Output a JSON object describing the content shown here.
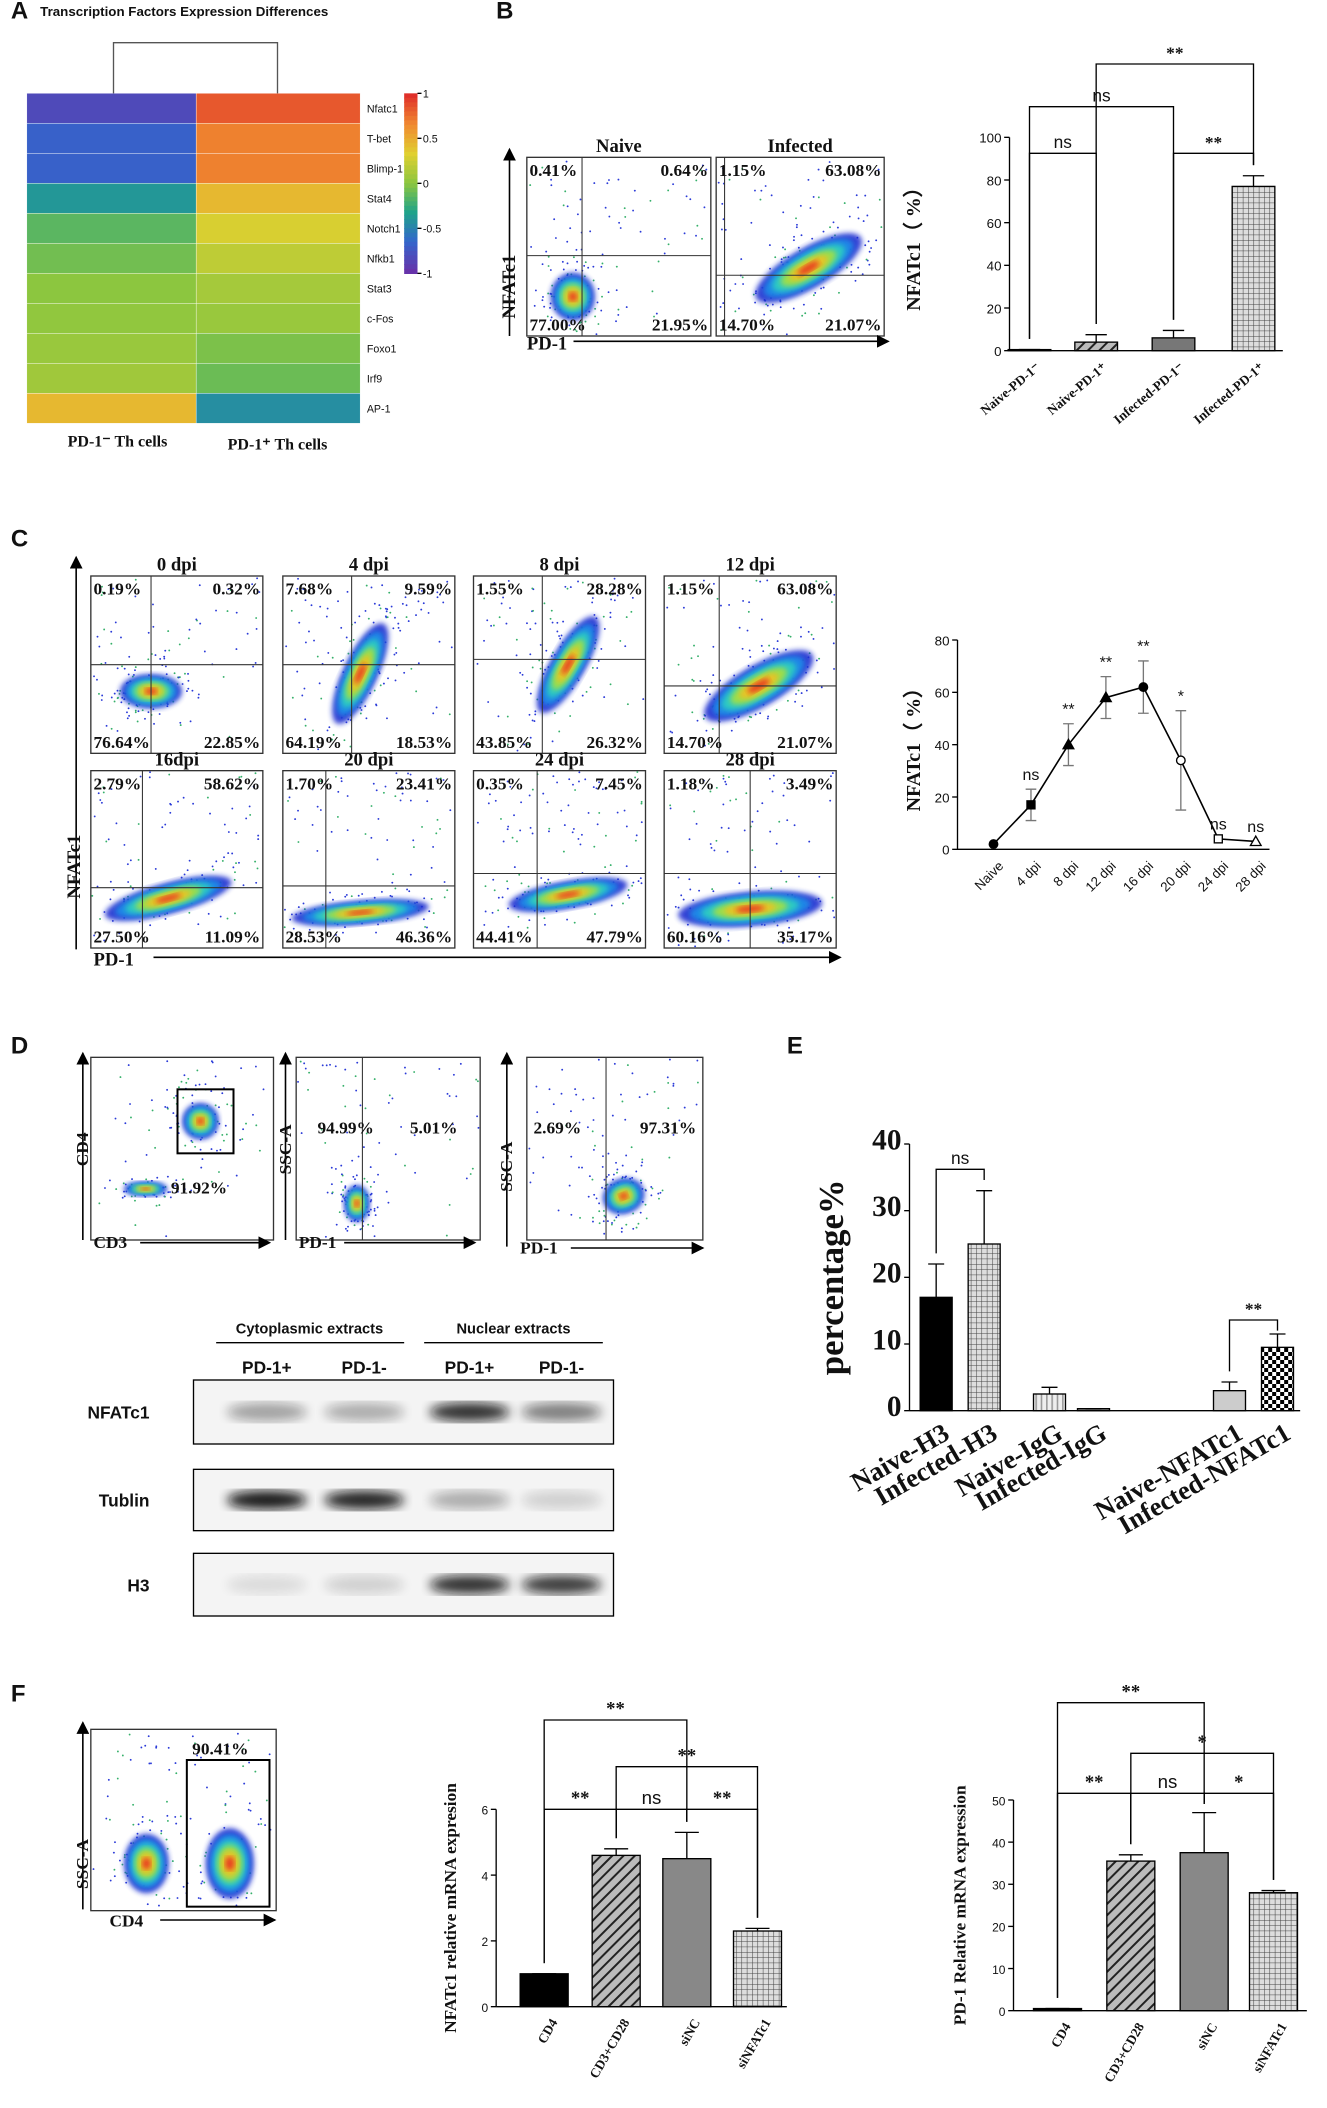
{
  "panel_labels": [
    "A",
    "B",
    "C",
    "D",
    "E",
    "F"
  ],
  "chart_data": [
    {
      "type": "heatmap",
      "title": "Transcription Factors Expression Differences",
      "rows": [
        "Nfatc1",
        "T-bet",
        "Blimp-1",
        "Stat4",
        "Notch1",
        "Nfkb1",
        "Stat3",
        "c-Fos",
        "Foxo1",
        "Irf9",
        "AP-1"
      ],
      "columns": [
        "PD-1⁻ Th cells",
        "PD-1⁺ Th cells"
      ],
      "values": [
        [
          -0.85,
          0.85
        ],
        [
          -0.7,
          0.7
        ],
        [
          -0.7,
          0.7
        ],
        [
          -0.4,
          0.45
        ],
        [
          -0.15,
          0.3
        ],
        [
          -0.08,
          0.2
        ],
        [
          0,
          0.1
        ],
        [
          0.02,
          0.05
        ],
        [
          0.05,
          -0.05
        ],
        [
          0.08,
          -0.1
        ],
        [
          0.45,
          -0.45
        ]
      ],
      "zlim": [
        -1,
        1
      ],
      "zticks": [
        1,
        0.5,
        0,
        -0.5,
        -1
      ],
      "colorscale": [
        "#6633aa",
        "#3366cc",
        "#1fa38a",
        "#8cc63f",
        "#e0d030",
        "#f08a30",
        "#e0302a"
      ]
    },
    {
      "type": "bar",
      "ylabel": "NFATc1（ %）",
      "categories": [
        "Naive-PD-1⁻",
        "Naive-PD-1⁺",
        "Infected-PD-1⁻",
        "Infected-PD-1⁺"
      ],
      "values": [
        0.5,
        4,
        6,
        77
      ],
      "errors": [
        0,
        3.5,
        3.5,
        5
      ],
      "colors": [
        "#000000",
        "#777777",
        "#777777",
        "#bbbbbb"
      ],
      "patterns": [
        "solid",
        "hatch",
        "solid",
        "grid"
      ],
      "ylim": [
        0,
        100
      ],
      "yticks": [
        0,
        20,
        40,
        60,
        80,
        100
      ],
      "annotations": [
        {
          "text": "ns",
          "from": 0,
          "to": 1
        },
        {
          "text": "ns",
          "from": 0,
          "to": 2
        },
        {
          "text": "**",
          "from": 2,
          "to": 3
        },
        {
          "text": "**",
          "from": 1,
          "to": 3
        }
      ]
    },
    {
      "type": "line",
      "ylabel": "NFATc1（ %）",
      "color": "#000000",
      "categories": [
        "Naive",
        "4 dpi",
        "8 dpi",
        "12 dpi",
        "16 dpi",
        "20 dpi",
        "24 dpi",
        "28 dpi"
      ],
      "values": [
        2,
        17,
        40,
        58,
        62,
        34,
        4,
        3
      ],
      "errors": [
        0,
        6,
        8,
        8,
        10,
        19,
        0,
        0
      ],
      "point_labels": [
        null,
        "ns",
        "**",
        "**",
        "**",
        "*",
        "ns",
        "ns"
      ],
      "ylim": [
        0,
        80
      ],
      "yticks": [
        0,
        20,
        40,
        60,
        80
      ]
    },
    {
      "type": "bar",
      "ylabel": "percentage%",
      "categories": [
        "Naive-H3",
        "Infected-H3",
        "Naive-IgG",
        "Infected-IgG",
        "Naive-NFATc1",
        "Infected-NFATc1"
      ],
      "values": [
        17,
        25,
        2.5,
        0.3,
        3,
        9.5
      ],
      "errors": [
        5,
        8,
        1,
        0,
        1.3,
        2
      ],
      "colors": [
        "#000000",
        "#888888",
        "#cccccc",
        "#888888",
        "#cccccc",
        "#000000"
      ],
      "patterns": [
        "solid",
        "grid",
        "vstripe",
        "solid",
        "solid",
        "checker"
      ],
      "ylim": [
        0,
        40
      ],
      "yticks": [
        0,
        10,
        20,
        30,
        40
      ],
      "annotations": [
        {
          "text": "ns",
          "from": 0,
          "to": 1
        },
        {
          "text": "**",
          "from": 4,
          "to": 5
        }
      ]
    },
    {
      "type": "bar",
      "ylabel": "NFATc1 relative mRNA expresion",
      "categories": [
        "CD4",
        "CD3+CD28",
        "siNC",
        "siNFATc1"
      ],
      "values": [
        1,
        4.6,
        4.5,
        2.3
      ],
      "errors": [
        0,
        0.2,
        0.8,
        0.08
      ],
      "colors": [
        "#000000",
        "#555555",
        "#888888",
        "#cccccc"
      ],
      "patterns": [
        "solid",
        "hatch",
        "solid",
        "grid"
      ],
      "ylim": [
        0,
        6
      ],
      "yticks": [
        0,
        2,
        4,
        6
      ],
      "annotations": [
        {
          "text": "**",
          "from": 0,
          "to": 2
        },
        {
          "text": "**",
          "from": 1,
          "to": 3
        },
        {
          "text": "**",
          "from": 0,
          "to": 1
        },
        {
          "text": "ns",
          "from": 1,
          "to": 2
        },
        {
          "text": "**",
          "from": 2,
          "to": 3
        }
      ]
    },
    {
      "type": "bar",
      "ylabel": "PD-1 Relative mRNA expression",
      "categories": [
        "CD4",
        "CD3+CD28",
        "siNC",
        "siNFATc1"
      ],
      "values": [
        0.5,
        35.5,
        37.5,
        28
      ],
      "errors": [
        0,
        1.5,
        9.5,
        0.5
      ],
      "colors": [
        "#000000",
        "#555555",
        "#888888",
        "#cccccc"
      ],
      "patterns": [
        "solid",
        "hatch",
        "solid",
        "grid"
      ],
      "ylim": [
        0,
        50
      ],
      "yticks": [
        0,
        10,
        20,
        30,
        40,
        50
      ],
      "annotations": [
        {
          "text": "**",
          "from": 0,
          "to": 2
        },
        {
          "text": "*",
          "from": 1,
          "to": 3
        },
        {
          "text": "**",
          "from": 0,
          "to": 1
        },
        {
          "text": "ns",
          "from": 1,
          "to": 2
        },
        {
          "text": "*",
          "from": 2,
          "to": 3
        }
      ]
    }
  ],
  "flow_b": {
    "ylabel": "NFATc1",
    "xlabel": "PD-1",
    "plots": [
      {
        "title": "Naive",
        "quadrants": [
          "0.41%",
          "0.64%",
          "77.00%",
          "21.95%"
        ]
      },
      {
        "title": "Infected",
        "quadrants": [
          "1.15%",
          "63.08%",
          "14.70%",
          "21.07%"
        ]
      }
    ]
  },
  "flow_c": {
    "ylabel": "NFATc1",
    "xlabel": "PD-1",
    "plots": [
      {
        "title": "0 dpi",
        "quadrants": [
          "0.19%",
          "0.32%",
          "76.64%",
          "22.85%"
        ]
      },
      {
        "title": "4 dpi",
        "quadrants": [
          "7.68%",
          "9.59%",
          "64.19%",
          "18.53%"
        ]
      },
      {
        "title": "8 dpi",
        "quadrants": [
          "1.55%",
          "28.28%",
          "43.85%",
          "26.32%"
        ]
      },
      {
        "title": "12 dpi",
        "quadrants": [
          "1.15%",
          "63.08%",
          "14.70%",
          "21.07%"
        ]
      },
      {
        "title": "16dpi",
        "quadrants": [
          "2.79%",
          "58.62%",
          "27.50%",
          "11.09%"
        ]
      },
      {
        "title": "20 dpi",
        "quadrants": [
          "1.70%",
          "23.41%",
          "28.53%",
          "46.36%"
        ]
      },
      {
        "title": "24 dpi",
        "quadrants": [
          "0.35%",
          "7.45%",
          "44.41%",
          "47.79%"
        ]
      },
      {
        "title": "28 dpi",
        "quadrants": [
          "1.18%",
          "3.49%",
          "60.16%",
          "35.17%"
        ]
      }
    ]
  },
  "flow_d": [
    {
      "ylabel": "CD4",
      "xlabel": "CD3",
      "gate": "91.92%"
    },
    {
      "ylabel": "SSC-A",
      "xlabel": "PD-1",
      "left": "94.99%",
      "right": "5.01%"
    },
    {
      "ylabel": "SSC-A",
      "xlabel": "PD-1",
      "left": "2.69%",
      "right": "97.31%"
    }
  ],
  "flow_f": {
    "ylabel": "SSC-A",
    "xlabel": "CD4",
    "gate": "90.41%"
  },
  "blot": {
    "headers": [
      "Cytoplasmic extracts",
      "Nuclear extracts"
    ],
    "lanes": [
      "PD-1+",
      "PD-1-",
      "PD-1+",
      "PD-1-"
    ],
    "rows": [
      "NFATc1",
      "Tublin",
      "H3"
    ]
  }
}
